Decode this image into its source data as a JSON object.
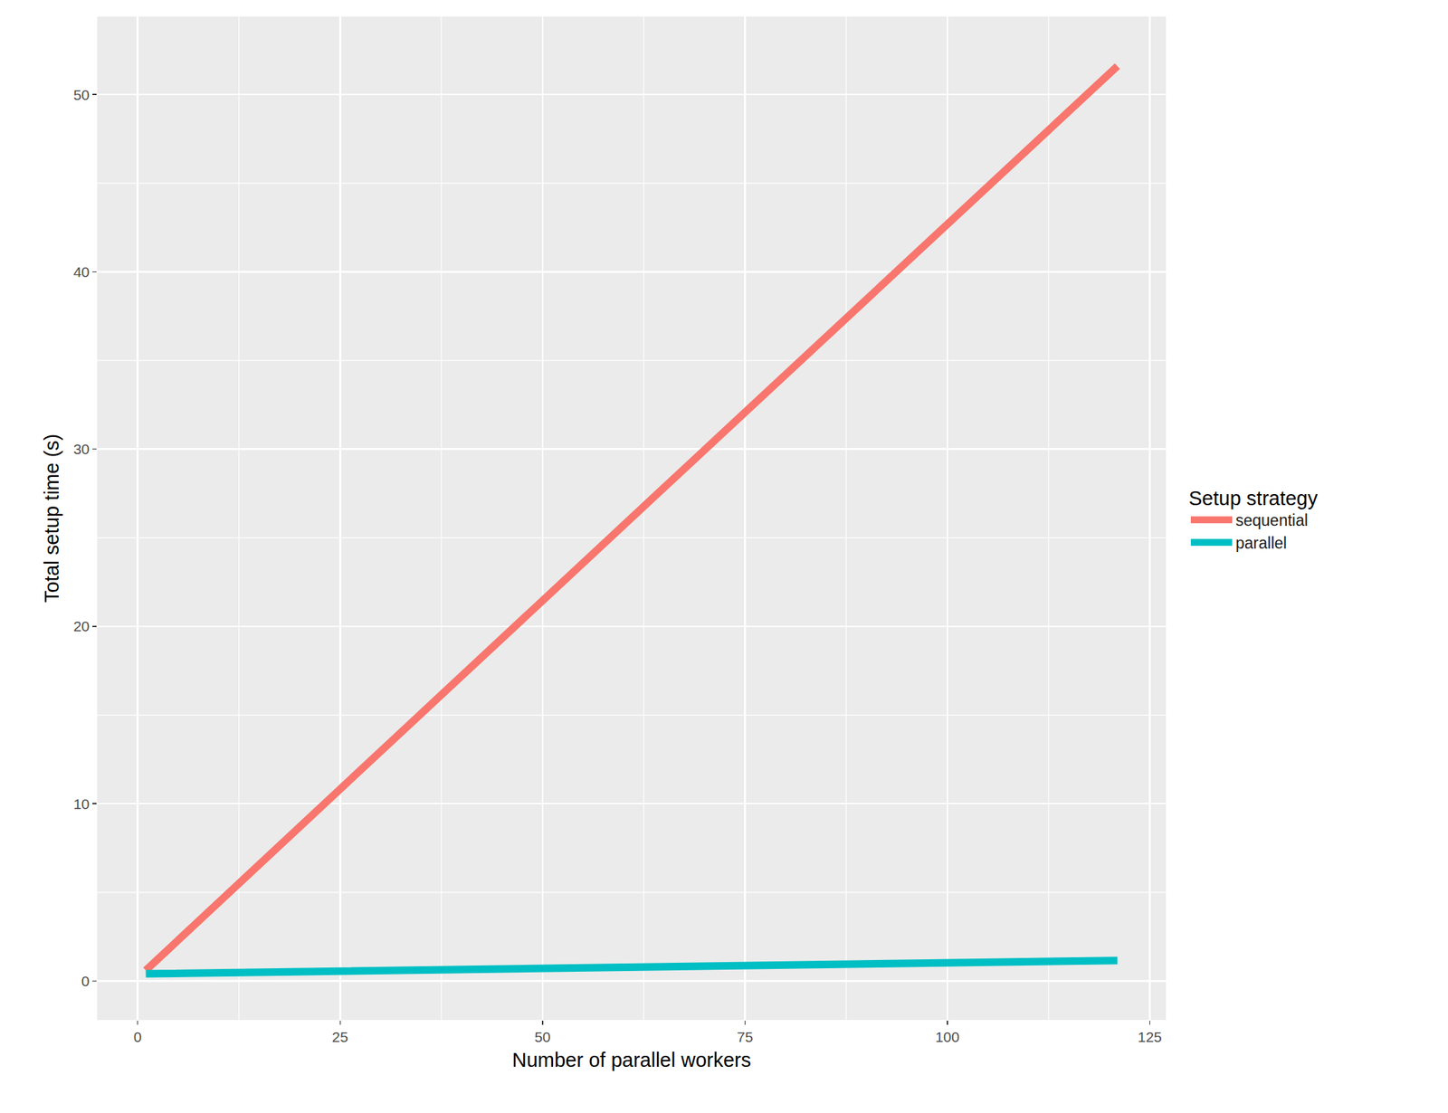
{
  "chart_data": {
    "type": "line",
    "x_label": "Number of parallel workers",
    "y_label": "Total setup time (s)",
    "legend_title": "Setup strategy",
    "x": [
      1,
      8,
      16,
      32,
      64,
      96,
      121
    ],
    "series": [
      {
        "name": "sequential",
        "color": "#F8766D",
        "values": [
          0.6,
          3.6,
          7.0,
          13.8,
          27.4,
          41.0,
          51.6
        ]
      },
      {
        "name": "parallel",
        "color": "#00BFC4",
        "values": [
          0.4,
          0.45,
          0.5,
          0.6,
          0.8,
          1.0,
          1.15
        ]
      }
    ],
    "xlim": [
      -5,
      127
    ],
    "xticks": [
      0,
      25,
      50,
      75,
      100,
      125
    ],
    "ylim": [
      -2.2,
      54.4
    ],
    "yticks": [
      0,
      10,
      20,
      30,
      40,
      50
    ],
    "grid": true,
    "legend": "right"
  }
}
